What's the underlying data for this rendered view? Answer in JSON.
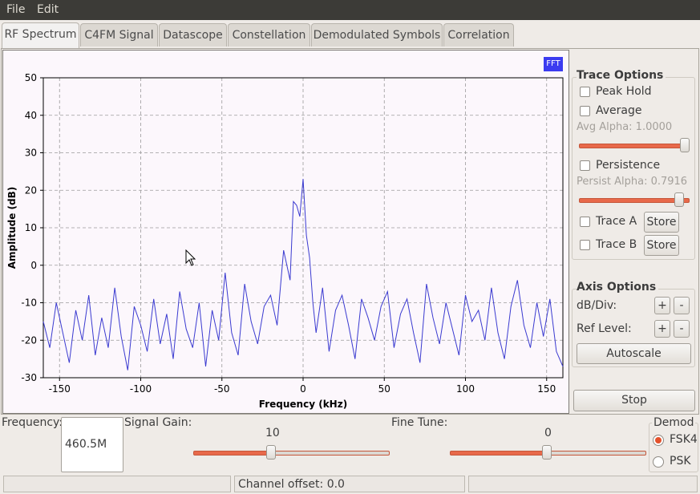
{
  "menu": {
    "file": "File",
    "edit": "Edit"
  },
  "tabs": [
    {
      "label": "RF Spectrum",
      "active": true
    },
    {
      "label": "C4FM Signal"
    },
    {
      "label": "Datascope"
    },
    {
      "label": "Constellation"
    },
    {
      "label": "Demodulated Symbols"
    },
    {
      "label": "Correlation"
    }
  ],
  "plot": {
    "badge": "FFT"
  },
  "trace_options": {
    "title": "Trace Options",
    "peak_hold": "Peak Hold",
    "average": "Average",
    "avg_alpha": "Avg Alpha: 1.0000",
    "avg_alpha_value": 1.0,
    "persistence": "Persistence",
    "persist_alpha": "Persist Alpha: 0.7916",
    "persist_alpha_value": 0.7916,
    "trace_a": "Trace A",
    "trace_b": "Trace B",
    "store": "Store"
  },
  "axis_options": {
    "title": "Axis Options",
    "db_div": "dB/Div:",
    "ref_level": "Ref Level:",
    "plus": "+",
    "minus": "-",
    "autoscale": "Autoscale"
  },
  "stop_button": "Stop",
  "controls": {
    "frequency_label": "Frequency:",
    "frequency_value": "460.5M",
    "signal_gain_label": "Signal Gain:",
    "signal_gain_value": "10",
    "fine_tune_label": "Fine Tune:",
    "fine_tune_value": "0",
    "demod_label": "Demod",
    "demod_options": [
      "FSK4",
      "PSK"
    ],
    "demod_selected": "FSK4"
  },
  "status": {
    "channel_offset": "Channel offset: 0.0"
  },
  "chart_data": {
    "type": "line",
    "xlabel": "Frequency (kHz)",
    "ylabel": "Amplitude (dB)",
    "xlim": [
      -160,
      160
    ],
    "ylim": [
      -30,
      50
    ],
    "xticks": [
      -150,
      -100,
      -50,
      0,
      50,
      100,
      150
    ],
    "yticks": [
      -30,
      -20,
      -10,
      0,
      10,
      20,
      30,
      40,
      50
    ],
    "grid": true,
    "series": [
      {
        "color": "#3a3ad0",
        "x": [
          -160,
          -156,
          -152,
          -148,
          -144,
          -140,
          -136,
          -132,
          -128,
          -124,
          -120,
          -116,
          -112,
          -108,
          -104,
          -100,
          -96,
          -92,
          -88,
          -84,
          -80,
          -76,
          -72,
          -68,
          -64,
          -60,
          -56,
          -52,
          -48,
          -44,
          -40,
          -36,
          -32,
          -28,
          -24,
          -20,
          -16,
          -12,
          -8,
          -6,
          -4,
          -2,
          0,
          2,
          4,
          6,
          8,
          12,
          16,
          20,
          24,
          28,
          32,
          36,
          40,
          44,
          48,
          52,
          56,
          60,
          64,
          68,
          72,
          76,
          80,
          84,
          88,
          92,
          96,
          100,
          104,
          108,
          112,
          116,
          120,
          124,
          128,
          132,
          136,
          140,
          144,
          148,
          152,
          156,
          160
        ],
        "y": [
          -15,
          -22,
          -10,
          -18,
          -26,
          -12,
          -20,
          -8,
          -24,
          -14,
          -22,
          -6,
          -19,
          -28,
          -11,
          -16,
          -23,
          -9,
          -21,
          -13,
          -25,
          -7,
          -17,
          -22,
          -10,
          -27,
          -12,
          -20,
          -2,
          -18,
          -24,
          -5,
          -15,
          -21,
          -11,
          -8,
          -16,
          4,
          -4,
          17,
          16,
          13,
          23,
          8,
          2,
          -10,
          -18,
          -6,
          -23,
          -12,
          -8,
          -16,
          -25,
          -9,
          -14,
          -20,
          -11,
          -7,
          -22,
          -13,
          -9,
          -18,
          -26,
          -5,
          -14,
          -21,
          -10,
          -17,
          -24,
          -8,
          -15,
          -12,
          -20,
          -6,
          -18,
          -25,
          -11,
          -4,
          -16,
          -22,
          -10,
          -19,
          -9,
          -23,
          -27
        ]
      }
    ]
  }
}
